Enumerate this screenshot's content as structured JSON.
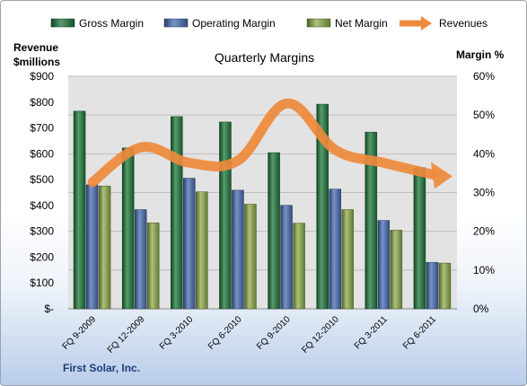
{
  "chart_data": {
    "type": "bar",
    "title": "Quarterly Margins",
    "left_axis_label": [
      "Revenue",
      "$millions"
    ],
    "right_axis_label": "Margin %",
    "categories": [
      "FQ 9-2009",
      "FQ 12-2009",
      "FQ 3-2010",
      "FQ 6-2010",
      "FQ 9-2010",
      "FQ 12-2010",
      "FQ 3-2011",
      "FQ 6-2011"
    ],
    "left_axis": {
      "min": 0,
      "max": 900,
      "step": 100,
      "unit": "$millions",
      "tick_labels": [
        "$-",
        "$100",
        "$200",
        "$300",
        "$400",
        "$500",
        "$600",
        "$700",
        "$800",
        "$900"
      ]
    },
    "right_axis": {
      "min": 0,
      "max": 60,
      "step": 10,
      "unit": "%",
      "tick_labels": [
        "0%",
        "10%",
        "20%",
        "30%",
        "40%",
        "50%",
        "60%"
      ]
    },
    "series": [
      {
        "name": "Gross Margin",
        "type": "bar",
        "axis": "right",
        "color": "#1e7a3c",
        "values": [
          51.0,
          41.5,
          49.6,
          48.2,
          40.3,
          52.8,
          45.6,
          36.4
        ]
      },
      {
        "name": "Operating Margin",
        "type": "bar",
        "axis": "right",
        "color": "#4a6fb5",
        "values": [
          32.0,
          25.6,
          33.7,
          30.6,
          26.7,
          30.9,
          22.8,
          12.0
        ]
      },
      {
        "name": "Net Margin",
        "type": "bar",
        "axis": "right",
        "color": "#8fae4b",
        "values": [
          31.7,
          22.2,
          30.2,
          27.0,
          22.1,
          25.6,
          20.3,
          11.8
        ]
      },
      {
        "name": "Revenues",
        "type": "line",
        "axis": "left",
        "color": "#ee8a3c",
        "values": [
          490,
          625,
          565,
          575,
          795,
          615,
          565,
          520
        ]
      }
    ],
    "legend_position": "top",
    "grid": true
  },
  "footer": {
    "company": "First Solar, Inc."
  }
}
